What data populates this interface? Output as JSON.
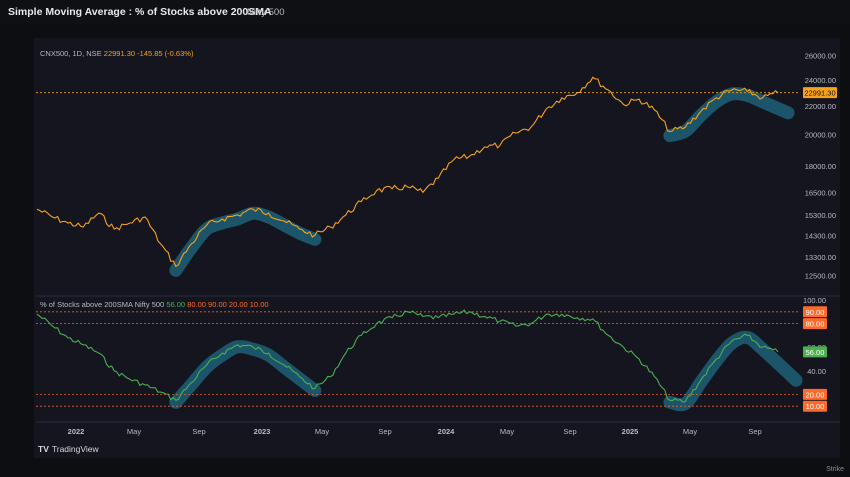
{
  "header": {
    "title": "Simple Moving Average : % of Stocks above 200SMA",
    "subtitle": "Nifty 500"
  },
  "brand": {
    "icon": "tradingview-logo-icon",
    "mark": "TV",
    "label": "TradingView"
  },
  "corner_label": "Strike",
  "colors": {
    "price": "#f7a21b",
    "breadth": "#4caf50",
    "highlight": "#1d5f78",
    "ref_line": "#ff6a2c",
    "grid": "#1f2230",
    "text": "#b7bac2"
  },
  "chart_data": [
    {
      "type": "line",
      "title": "CNX500, 1D, NSE",
      "legend": {
        "last": "22991.30",
        "change": "-145.85 (-0.63%)"
      },
      "yticks": [
        "26000.00",
        "24000.00",
        "22000.00",
        "20000.00",
        "18000.00",
        "16500.00",
        "15300.00",
        "14300.00",
        "13300.00",
        "12500.00"
      ],
      "yscale": "log",
      "ylim": [
        12000,
        26500
      ],
      "last_value_label": "22991.30",
      "series": [
        {
          "name": "CNX500",
          "x": [
            "2021-09",
            "2021-10",
            "2021-11",
            "2021-12",
            "2022-01",
            "2022-02",
            "2022-03",
            "2022-04",
            "2022-05",
            "2022-06",
            "2022-07",
            "2022-08",
            "2022-09",
            "2022-10",
            "2022-11",
            "2022-12",
            "2023-01",
            "2023-02",
            "2023-03",
            "2023-04",
            "2023-05",
            "2023-06",
            "2023-07",
            "2023-08",
            "2023-09",
            "2023-10",
            "2023-11",
            "2023-12",
            "2024-01",
            "2024-02",
            "2024-03",
            "2024-04",
            "2024-05",
            "2024-06",
            "2024-07",
            "2024-08",
            "2024-09",
            "2024-10",
            "2024-11",
            "2024-12",
            "2025-01",
            "2025-02",
            "2025-03",
            "2025-04",
            "2025-05",
            "2025-06",
            "2025-07",
            "2025-08",
            "2025-09"
          ],
          "values": [
            15600,
            15200,
            14900,
            14700,
            15400,
            14600,
            14900,
            15200,
            13900,
            12900,
            13900,
            14800,
            15100,
            15300,
            15600,
            15400,
            15000,
            14600,
            14300,
            14700,
            15300,
            16000,
            16600,
            16700,
            16800,
            16500,
            17300,
            18400,
            18600,
            19200,
            19300,
            20100,
            20500,
            21800,
            22600,
            23000,
            24200,
            23200,
            22100,
            22500,
            21700,
            20200,
            20500,
            21600,
            22600,
            23200,
            23100,
            22600,
            22991
          ]
        }
      ],
      "highlights": [
        "2022 recovery arc",
        "2025 recovery arc"
      ]
    },
    {
      "type": "line",
      "title": "% of Stocks above 200SMA Nifty 500",
      "legend": {
        "values": [
          "56.00",
          "80.00",
          "90.00",
          "20.00",
          "10.00"
        ]
      },
      "yticks": [
        "100.00",
        "60.00",
        "40.00"
      ],
      "ylim": [
        0,
        100
      ],
      "reference_lines": [
        90,
        80,
        20,
        10
      ],
      "reference_labels": [
        "90.00",
        "80.00",
        "20.00",
        "10.00"
      ],
      "last_value_label": "56.00",
      "series": [
        {
          "name": "% of Stocks above 200SMA Nifty 500",
          "x": [
            "2021-09",
            "2021-10",
            "2021-11",
            "2021-12",
            "2022-01",
            "2022-02",
            "2022-03",
            "2022-04",
            "2022-05",
            "2022-06",
            "2022-07",
            "2022-08",
            "2022-09",
            "2022-10",
            "2022-11",
            "2022-12",
            "2023-01",
            "2023-02",
            "2023-03",
            "2023-04",
            "2023-05",
            "2023-06",
            "2023-07",
            "2023-08",
            "2023-09",
            "2023-10",
            "2023-11",
            "2023-12",
            "2024-01",
            "2024-02",
            "2024-03",
            "2024-04",
            "2024-05",
            "2024-06",
            "2024-07",
            "2024-08",
            "2024-09",
            "2024-10",
            "2024-11",
            "2024-12",
            "2025-01",
            "2025-02",
            "2025-03",
            "2025-04",
            "2025-05",
            "2025-06",
            "2025-07",
            "2025-08",
            "2025-09"
          ],
          "values": [
            88,
            78,
            68,
            62,
            55,
            40,
            33,
            28,
            22,
            15,
            30,
            45,
            55,
            62,
            60,
            55,
            45,
            35,
            25,
            35,
            55,
            70,
            80,
            85,
            90,
            86,
            85,
            88,
            90,
            86,
            82,
            78,
            80,
            88,
            88,
            85,
            84,
            70,
            60,
            50,
            35,
            15,
            14,
            32,
            50,
            65,
            70,
            60,
            56
          ]
        }
      ],
      "highlights": [
        "2022 recovery arc",
        "2025 recovery arc"
      ]
    }
  ],
  "xaxis": {
    "labels": [
      "2022",
      "May",
      "Sep",
      "2023",
      "May",
      "Sep",
      "2024",
      "May",
      "Sep",
      "2025",
      "May",
      "Sep"
    ]
  }
}
